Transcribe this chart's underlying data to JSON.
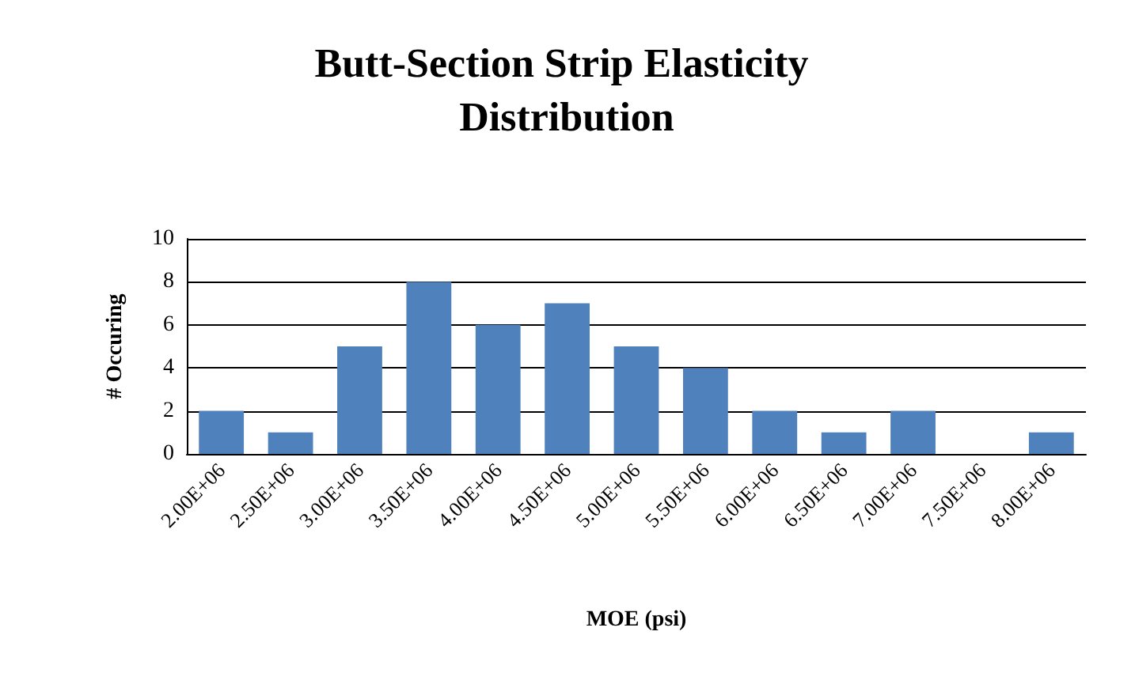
{
  "chart_data": {
    "type": "bar",
    "title": "Butt-Section Strip Elasticity Distribution",
    "xlabel": "MOE (psi)",
    "ylabel": "# Occuring",
    "categories": [
      "2.00E+06",
      "2.50E+06",
      "3.00E+06",
      "3.50E+06",
      "4.00E+06",
      "4.50E+06",
      "5.00E+06",
      "5.50E+06",
      "6.00E+06",
      "6.50E+06",
      "7.00E+06",
      "7.50E+06",
      "8.00E+06"
    ],
    "values": [
      2,
      1,
      5,
      8,
      6,
      7,
      5,
      4,
      2,
      1,
      2,
      0,
      1
    ],
    "color": "#4f81bd",
    "ylim": [
      0,
      10
    ],
    "yticks": [
      0,
      2,
      4,
      6,
      8,
      10
    ],
    "grid": "y"
  }
}
